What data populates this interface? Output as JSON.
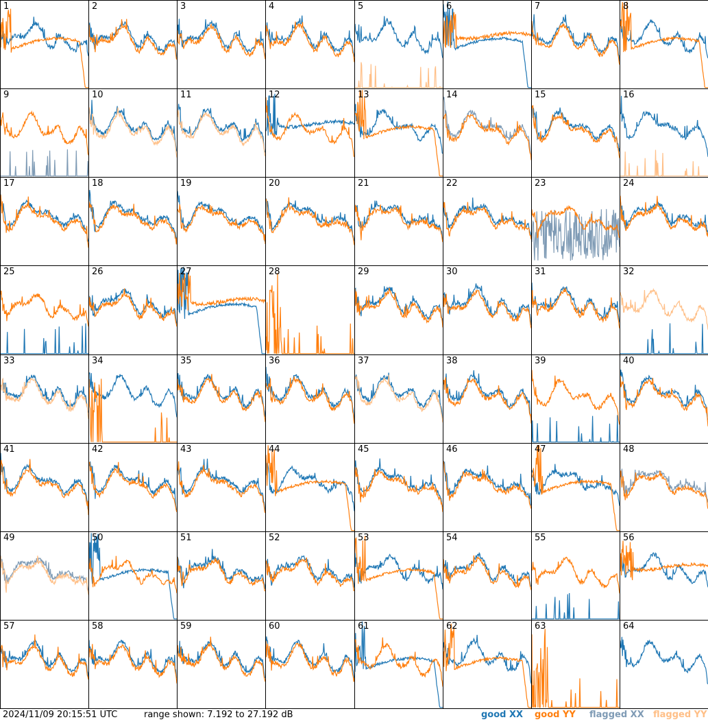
{
  "footer": {
    "timestamp": "2024/11/09 20:15:51 UTC",
    "range_text": "range shown: 7.192 to 27.192 dB"
  },
  "legend": [
    {
      "label": "good XX",
      "color": "#1f77b4"
    },
    {
      "label": "good YY",
      "color": "#ff7f0e"
    },
    {
      "label": "flagged XX",
      "color": "#7f9bb5"
    },
    {
      "label": "flagged YY",
      "color": "#ffbf87"
    }
  ],
  "chart_data": {
    "type": "line",
    "grid": "8x8 small multiples",
    "y_range_db": [
      7.192,
      27.192
    ],
    "panel_labels": [
      "1",
      "2",
      "3",
      "4",
      "5",
      "6",
      "7",
      "8",
      "9",
      "10",
      "11",
      "12",
      "13",
      "14",
      "15",
      "16",
      "17",
      "18",
      "19",
      "20",
      "21",
      "22",
      "23",
      "24",
      "25",
      "26",
      "27",
      "28",
      "29",
      "30",
      "31",
      "32",
      "33",
      "34",
      "35",
      "36",
      "37",
      "38",
      "39",
      "40",
      "41",
      "42",
      "43",
      "44",
      "45",
      "46",
      "47",
      "48",
      "49",
      "50",
      "51",
      "52",
      "53",
      "54",
      "55",
      "56",
      "57",
      "58",
      "59",
      "60",
      "61",
      "62",
      "63",
      "64"
    ],
    "panel_kinds": {
      "1": [
        "xx_normal",
        "yy_rolloff"
      ],
      "2": [
        "xx_normal",
        "yy_normal"
      ],
      "3": [
        "xx_normal",
        "yy_normal"
      ],
      "4": [
        "xx_normal",
        "yy_normal"
      ],
      "5": [
        "xx_normal",
        "yy_fspikes"
      ],
      "6": [
        "xx_rolloff",
        "yy_flat"
      ],
      "7": [
        "xx_normal",
        "yy_normal"
      ],
      "8": [
        "xx_normal",
        "yy_rolloff"
      ],
      "9": [
        "xx_fspikes",
        "yy_normal"
      ],
      "10": [
        "xx_normal",
        "yy_flagged"
      ],
      "11": [
        "xx_normal",
        "yy_flagged"
      ],
      "12": [
        "xx_flat",
        "yy_normal"
      ],
      "13": [
        "xx_normal",
        "yy_rolloff"
      ],
      "14": [
        "xx_flagged",
        "yy_normal"
      ],
      "15": [
        "xx_normal",
        "yy_normal"
      ],
      "16": [
        "xx_normal",
        "yy_fspikes"
      ],
      "17": [
        "xx_normal",
        "yy_normal"
      ],
      "18": [
        "xx_normal",
        "yy_normal"
      ],
      "19": [
        "xx_normal",
        "yy_normal"
      ],
      "20": [
        "xx_normal",
        "yy_normal"
      ],
      "21": [
        "xx_normal",
        "yy_normal"
      ],
      "22": [
        "xx_normal",
        "yy_normal"
      ],
      "23": [
        "xx_noise_flagged",
        "yy_normal"
      ],
      "24": [
        "xx_normal",
        "yy_normal"
      ],
      "25": [
        "xx_spikes",
        "yy_normal"
      ],
      "26": [
        "xx_normal",
        "yy_normal"
      ],
      "27": [
        "xx_rolloff",
        "yy_flat"
      ],
      "28": [
        "yy_spikes_only"
      ],
      "29": [
        "xx_normal",
        "yy_normal"
      ],
      "30": [
        "xx_normal",
        "yy_normal"
      ],
      "31": [
        "xx_normal",
        "yy_normal"
      ],
      "32": [
        "xx_spikes",
        "yy_flagged"
      ],
      "33": [
        "xx_normal",
        "yy_flagged"
      ],
      "34": [
        "xx_normal",
        "yy_spikes"
      ],
      "35": [
        "xx_normal",
        "yy_normal"
      ],
      "36": [
        "xx_normal",
        "yy_normal"
      ],
      "37": [
        "xx_normal",
        "yy_flagged"
      ],
      "38": [
        "xx_normal",
        "yy_normal"
      ],
      "39": [
        "xx_spikes",
        "yy_normal"
      ],
      "40": [
        "xx_normal",
        "yy_normal"
      ],
      "41": [
        "xx_normal",
        "yy_normal"
      ],
      "42": [
        "xx_normal",
        "yy_normal"
      ],
      "43": [
        "xx_normal",
        "yy_normal"
      ],
      "44": [
        "xx_normal",
        "yy_rolloff"
      ],
      "45": [
        "xx_normal",
        "yy_normal"
      ],
      "46": [
        "xx_normal",
        "yy_normal"
      ],
      "47": [
        "xx_normal",
        "yy_rolloff"
      ],
      "48": [
        "xx_flagged",
        "yy_normal"
      ],
      "49": [
        "xx_flagged",
        "yy_flagged"
      ],
      "50": [
        "xx_rolloff",
        "yy_normal"
      ],
      "51": [
        "xx_normal",
        "yy_normal"
      ],
      "52": [
        "xx_normal",
        "yy_normal"
      ],
      "53": [
        "xx_normal",
        "yy_rolloff"
      ],
      "54": [
        "xx_normal",
        "yy_normal"
      ],
      "55": [
        "xx_spikes",
        "yy_normal"
      ],
      "56": [
        "xx_normal",
        "yy_flat"
      ],
      "57": [
        "xx_normal",
        "yy_normal"
      ],
      "58": [
        "xx_normal",
        "yy_normal"
      ],
      "59": [
        "xx_normal",
        "yy_normal"
      ],
      "60": [
        "xx_normal",
        "yy_normal"
      ],
      "61": [
        "xx_rolloff",
        "yy_normal"
      ],
      "62": [
        "xx_normal",
        "yy_rolloff"
      ],
      "63": [
        "yy_spikes_only"
      ],
      "64": [
        "xx_normal"
      ]
    }
  }
}
